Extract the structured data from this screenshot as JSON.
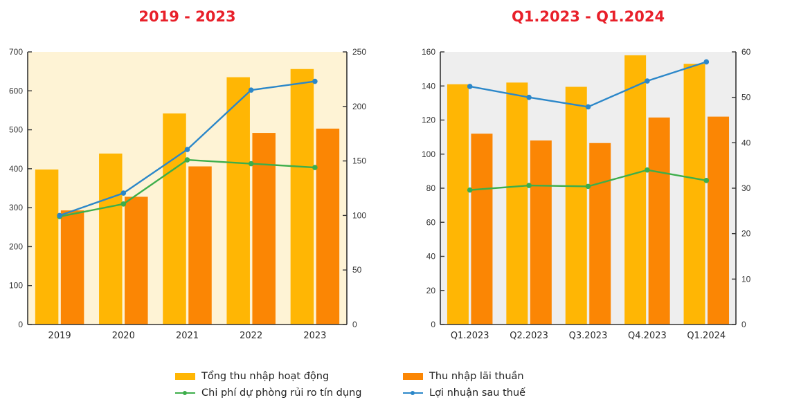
{
  "colors": {
    "title": "#E8202A",
    "total_income": "#FFB604",
    "net_interest": "#FB8604",
    "provision": "#3DAE4B",
    "profit": "#2B87C9",
    "left_bg": "#FEF3D5",
    "right_bg": "#EEEEEE",
    "axis": "#333333"
  },
  "legend": {
    "items": [
      {
        "key": "total_income",
        "label": "Tổng thu nhập hoạt động",
        "kind": "bar"
      },
      {
        "key": "net_interest",
        "label": "Thu nhập lãi thuần",
        "kind": "bar"
      },
      {
        "key": "provision",
        "label": "Chi phí dự phòng rủi ro tín dụng",
        "kind": "line"
      },
      {
        "key": "profit",
        "label": "Lợi nhuận sau thuế",
        "kind": "line"
      }
    ]
  },
  "chart_data": [
    {
      "type": "bar",
      "title": "2019 - 2023",
      "categories": [
        "2019",
        "2020",
        "2021",
        "2022",
        "2023"
      ],
      "y_left": {
        "range": [
          0,
          700
        ],
        "ticks": [
          0,
          100,
          200,
          300,
          400,
          500,
          600,
          700
        ]
      },
      "y_right": {
        "range": [
          0,
          250
        ],
        "ticks": [
          0,
          50,
          100,
          150,
          200,
          250
        ]
      },
      "grid": false,
      "series": [
        {
          "name": "Tổng thu nhập hoạt động",
          "key": "total_income",
          "kind": "bar",
          "axis": "left",
          "values": [
            398,
            439,
            542,
            635,
            656
          ]
        },
        {
          "name": "Thu nhập lãi thuần",
          "key": "net_interest",
          "kind": "bar",
          "axis": "left",
          "values": [
            293,
            328,
            406,
            492,
            503
          ]
        },
        {
          "name": "Chi phí dự phòng rủi ro tín dụng",
          "key": "provision",
          "kind": "line",
          "axis": "right",
          "values": [
            99,
            110.5,
            151,
            147.5,
            144
          ]
        },
        {
          "name": "Lợi nhuận sau thuế",
          "key": "profit",
          "kind": "line",
          "axis": "right",
          "values": [
            100,
            120.5,
            160.5,
            215,
            223
          ]
        }
      ],
      "legend_position": "bottom"
    },
    {
      "type": "bar",
      "title": "Q1.2023 - Q1.2024",
      "categories": [
        "Q1.2023",
        "Q2.2023",
        "Q3.2023",
        "Q4.2023",
        "Q1.2024"
      ],
      "y_left": {
        "range": [
          0,
          160
        ],
        "ticks": [
          0,
          20,
          40,
          60,
          80,
          100,
          120,
          140,
          160
        ]
      },
      "y_right": {
        "range": [
          0,
          60
        ],
        "ticks": [
          0,
          10,
          20,
          30,
          40,
          50,
          60
        ]
      },
      "grid": false,
      "series": [
        {
          "name": "Tổng thu nhập hoạt động",
          "key": "total_income",
          "kind": "bar",
          "axis": "left",
          "values": [
            141,
            142,
            139.5,
            158,
            153
          ]
        },
        {
          "name": "Thu nhập lãi thuần",
          "key": "net_interest",
          "kind": "bar",
          "axis": "left",
          "values": [
            112,
            108,
            106.5,
            121.5,
            122
          ]
        },
        {
          "name": "Chi phí dự phòng rủi ro tín dụng",
          "key": "provision",
          "kind": "line",
          "axis": "right",
          "values": [
            29.6,
            30.6,
            30.4,
            34,
            31.7
          ]
        },
        {
          "name": "Lợi nhuận sau thuế",
          "key": "profit",
          "kind": "line",
          "axis": "right",
          "values": [
            52.4,
            50,
            47.9,
            53.6,
            57.8
          ]
        }
      ],
      "legend_position": "bottom"
    }
  ]
}
